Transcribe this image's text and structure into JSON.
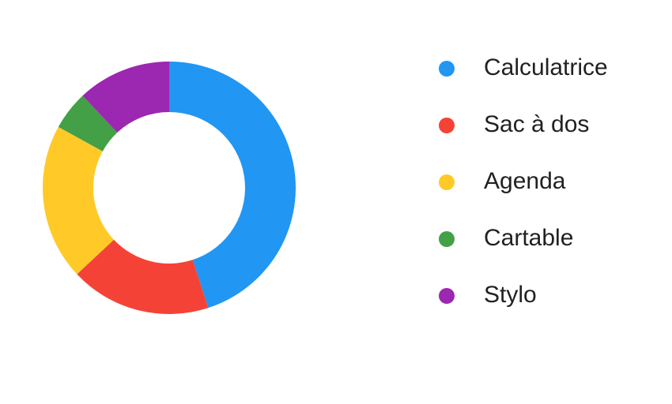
{
  "chart_data": {
    "type": "pie",
    "donut": true,
    "legend_position": "right",
    "categories": [
      "Calculatrice",
      "Sac à dos",
      "Agenda",
      "Cartable",
      "Stylo"
    ],
    "values": [
      45,
      18,
      20,
      5,
      12
    ],
    "colors": [
      "#2196F3",
      "#F44336",
      "#FFCA28",
      "#43A047",
      "#9C27B0"
    ]
  }
}
